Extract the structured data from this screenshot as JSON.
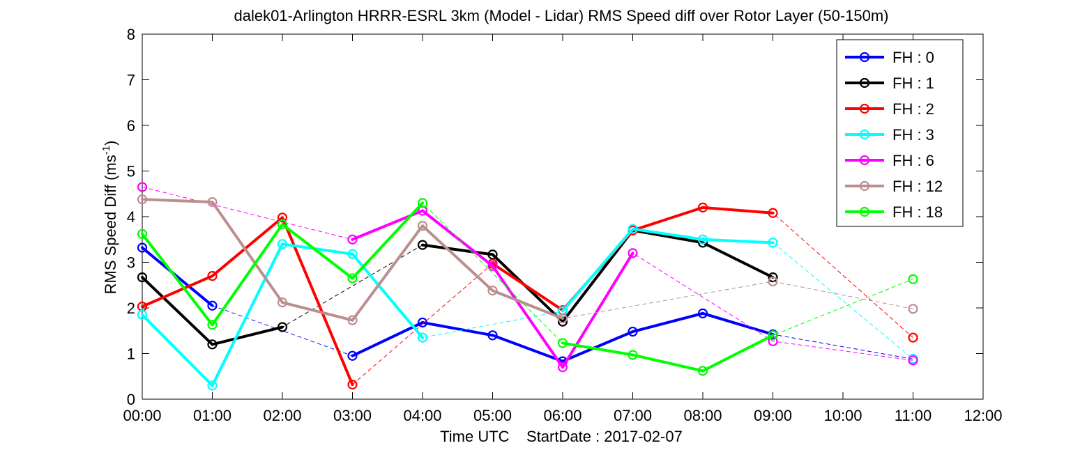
{
  "chart_data": {
    "type": "line",
    "title": "dalek01-Arlington HRRR-ESRL 3km (Model - Lidar) RMS Speed diff over Rotor Layer (50-150m)",
    "xlabel": "Time UTC    StartDate : 2017-02-07",
    "ylabel_main": "RMS Speed Diff (ms",
    "ylabel_sup": "-1",
    "ylabel_close": ")",
    "xlim": [
      0,
      12
    ],
    "ylim": [
      0,
      8
    ],
    "x_ticks": [
      0,
      1,
      2,
      3,
      4,
      5,
      6,
      7,
      8,
      9,
      10,
      11,
      12
    ],
    "x_tick_labels": [
      "00:00",
      "01:00",
      "02:00",
      "03:00",
      "04:00",
      "05:00",
      "06:00",
      "07:00",
      "08:00",
      "09:00",
      "10:00",
      "11:00",
      "12:00"
    ],
    "y_ticks": [
      0,
      1,
      2,
      3,
      4,
      5,
      6,
      7,
      8
    ],
    "y_tick_labels": [
      "0",
      "1",
      "2",
      "3",
      "4",
      "5",
      "6",
      "7",
      "8"
    ],
    "grid": false,
    "legend_position": "top-right",
    "series": [
      {
        "name": "FH : 0",
        "color": "#0000ff",
        "x": [
          0,
          1,
          2,
          3,
          4,
          5,
          6,
          7,
          8,
          9,
          10,
          11
        ],
        "y": [
          3.32,
          2.05,
          null,
          0.95,
          1.68,
          1.4,
          0.83,
          1.48,
          1.88,
          1.42,
          null,
          0.88
        ]
      },
      {
        "name": "FH : 1",
        "color": "#000000",
        "x": [
          0,
          1,
          2,
          3,
          4,
          5,
          6,
          7,
          8,
          9,
          10,
          11
        ],
        "y": [
          2.67,
          1.2,
          1.58,
          null,
          3.38,
          3.17,
          1.7,
          3.7,
          3.43,
          2.67,
          null,
          null
        ]
      },
      {
        "name": "FH : 2",
        "color": "#ff0000",
        "x": [
          0,
          1,
          2,
          3,
          4,
          5,
          6,
          7,
          8,
          9,
          10,
          11
        ],
        "y": [
          2.03,
          2.7,
          3.98,
          0.32,
          null,
          2.97,
          1.95,
          3.7,
          4.2,
          4.08,
          null,
          1.35
        ]
      },
      {
        "name": "FH : 3",
        "color": "#00ffff",
        "x": [
          0,
          1,
          2,
          3,
          4,
          5,
          6,
          7,
          8,
          9,
          10,
          11
        ],
        "y": [
          1.85,
          0.3,
          3.4,
          3.18,
          1.35,
          null,
          1.93,
          3.73,
          3.5,
          3.43,
          null,
          0.88
        ]
      },
      {
        "name": "FH : 6",
        "color": "#ff00ff",
        "x": [
          0,
          1,
          2,
          3,
          4,
          5,
          6,
          7,
          8,
          9,
          10,
          11
        ],
        "y": [
          4.65,
          null,
          null,
          3.5,
          4.13,
          2.92,
          0.7,
          3.2,
          null,
          1.27,
          null,
          0.85
        ]
      },
      {
        "name": "FH : 12",
        "color": "#bc8f8f",
        "x": [
          0,
          1,
          2,
          3,
          4,
          5,
          6,
          7,
          8,
          9,
          10,
          11
        ],
        "y": [
          4.38,
          4.32,
          2.12,
          1.73,
          3.8,
          2.38,
          1.77,
          null,
          null,
          2.58,
          null,
          1.98
        ]
      },
      {
        "name": "FH : 18",
        "color": "#00ff00",
        "x": [
          0,
          1,
          2,
          3,
          4,
          5,
          6,
          7,
          8,
          9,
          10,
          11
        ],
        "y": [
          3.62,
          1.63,
          3.83,
          2.65,
          4.3,
          null,
          1.23,
          0.97,
          0.62,
          1.4,
          null,
          2.63
        ]
      }
    ]
  }
}
